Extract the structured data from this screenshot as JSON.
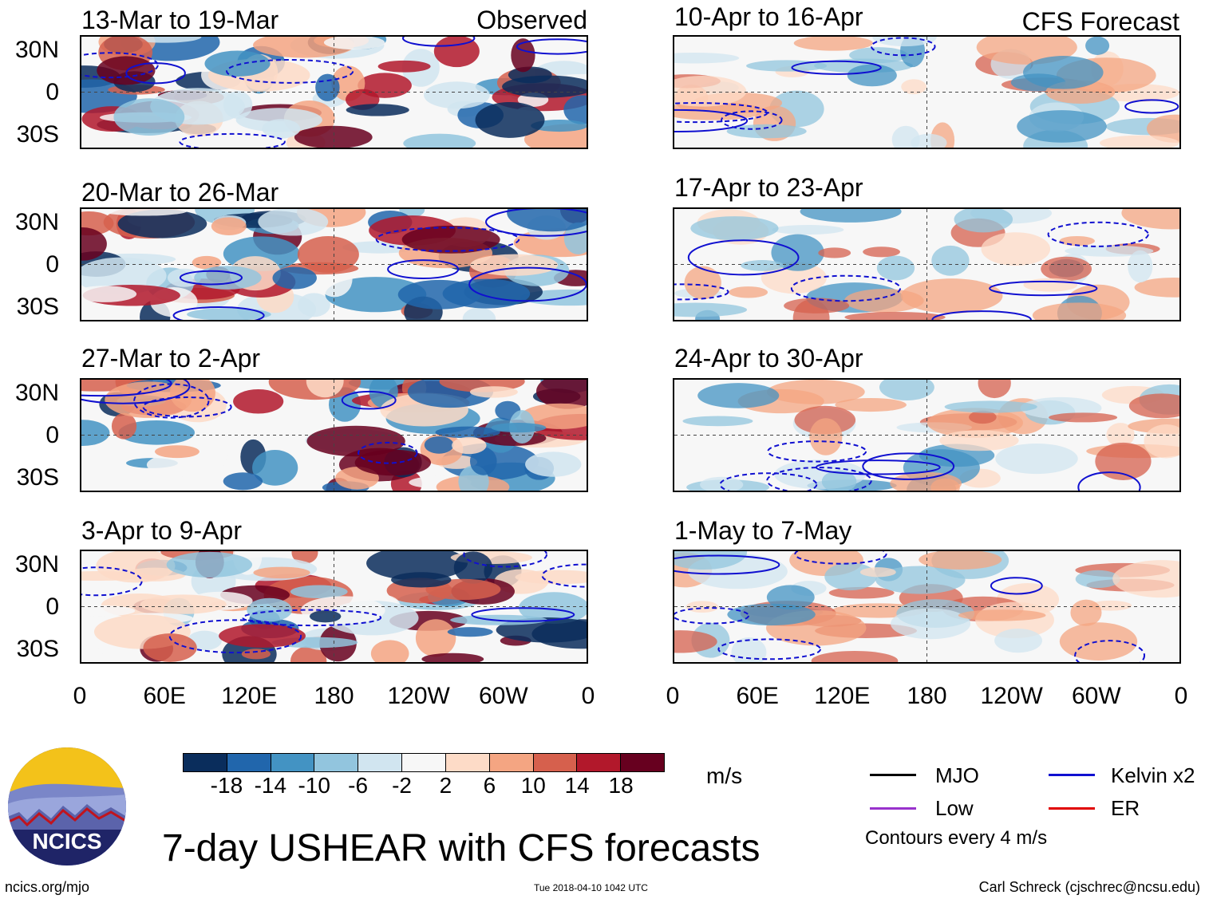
{
  "figure": {
    "main_title": "7-day USHEAR with CFS forecasts",
    "units": "m/s",
    "contour_note": "Contours every 4 m/s",
    "footer_left": "ncics.org/mjo",
    "footer_center": "Tue 2018-04-10 1042 UTC",
    "footer_right": "Carl Schreck (cjschrec@ncsu.edu)",
    "logo_text": "NCICS"
  },
  "observed_label": "Observed",
  "forecast_label": "CFS Forecast",
  "lat_labels": [
    "30N",
    "0",
    "30S"
  ],
  "lon_labels": [
    "0",
    "60E",
    "120E",
    "180",
    "120W",
    "60W",
    "0"
  ],
  "observed_panels": [
    {
      "title": "13-Mar to 19-Mar"
    },
    {
      "title": "20-Mar to 26-Mar"
    },
    {
      "title": "27-Mar to 2-Apr"
    },
    {
      "title": "3-Apr to 9-Apr"
    }
  ],
  "forecast_panels": [
    {
      "title": "10-Apr to 16-Apr"
    },
    {
      "title": "17-Apr to 23-Apr"
    },
    {
      "title": "24-Apr to 30-Apr"
    },
    {
      "title": "1-May to 7-May"
    }
  ],
  "colorbar": {
    "colors": [
      "#0a2d5c",
      "#2166ac",
      "#4393c3",
      "#92c5de",
      "#d1e5f0",
      "#f7f7f7",
      "#fddbc7",
      "#f4a582",
      "#d6604d",
      "#b2182b",
      "#67001f"
    ],
    "labels": [
      "-18",
      "-14",
      "-10",
      "-6",
      "-2",
      "2",
      "6",
      "10",
      "14",
      "18"
    ]
  },
  "legend": [
    {
      "label": "MJO",
      "color": "#000000"
    },
    {
      "label": "Kelvin x2",
      "color": "#1010d0"
    },
    {
      "label": "Low",
      "color": "#9932cc"
    },
    {
      "label": "ER",
      "color": "#e00000"
    }
  ]
}
